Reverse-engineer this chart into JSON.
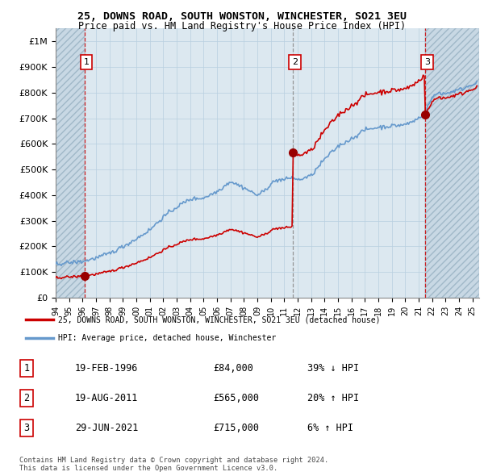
{
  "title1": "25, DOWNS ROAD, SOUTH WONSTON, WINCHESTER, SO21 3EU",
  "title2": "Price paid vs. HM Land Registry's House Price Index (HPI)",
  "ylim": [
    0,
    1050000
  ],
  "yticks": [
    0,
    100000,
    200000,
    300000,
    400000,
    500000,
    600000,
    700000,
    800000,
    900000,
    1000000
  ],
  "ytick_labels": [
    "£0",
    "£100K",
    "£200K",
    "£300K",
    "£400K",
    "£500K",
    "£600K",
    "£700K",
    "£800K",
    "£900K",
    "£1M"
  ],
  "xlim_start": 1994.0,
  "xlim_end": 2025.5,
  "xticks": [
    1994,
    1995,
    1996,
    1997,
    1998,
    1999,
    2000,
    2001,
    2002,
    2003,
    2004,
    2005,
    2006,
    2007,
    2008,
    2009,
    2010,
    2011,
    2012,
    2013,
    2014,
    2015,
    2016,
    2017,
    2018,
    2019,
    2020,
    2021,
    2022,
    2023,
    2024,
    2025
  ],
  "transactions": [
    {
      "id": 1,
      "date_num": 1996.13,
      "price": 84000,
      "label": "1"
    },
    {
      "id": 2,
      "date_num": 2011.63,
      "price": 565000,
      "label": "2"
    },
    {
      "id": 3,
      "date_num": 2021.49,
      "price": 715000,
      "label": "3"
    }
  ],
  "t1_vline_color": "#cc0000",
  "t2_vline_color": "#888888",
  "t3_vline_color": "#cc0000",
  "vline_style": "--",
  "transaction_marker_color": "#990000",
  "hpi_line_color": "#6699cc",
  "price_line_color": "#cc0000",
  "legend_entries": [
    "25, DOWNS ROAD, SOUTH WONSTON, WINCHESTER, SO21 3EU (detached house)",
    "HPI: Average price, detached house, Winchester"
  ],
  "table_rows": [
    {
      "num": "1",
      "date": "19-FEB-1996",
      "price": "£84,000",
      "hpi": "39% ↓ HPI"
    },
    {
      "num": "2",
      "date": "19-AUG-2011",
      "price": "£565,000",
      "hpi": "20% ↑ HPI"
    },
    {
      "num": "3",
      "date": "29-JUN-2021",
      "price": "£715,000",
      "hpi": "6% ↑ HPI"
    }
  ],
  "footer_text": "Contains HM Land Registry data © Crown copyright and database right 2024.\nThis data is licensed under the Open Government Licence v3.0.",
  "background_color": "#ffffff",
  "plot_bg_color": "#dce8f0",
  "grid_color": "#b8cfe0",
  "hatch_color": "#c8d8e4"
}
